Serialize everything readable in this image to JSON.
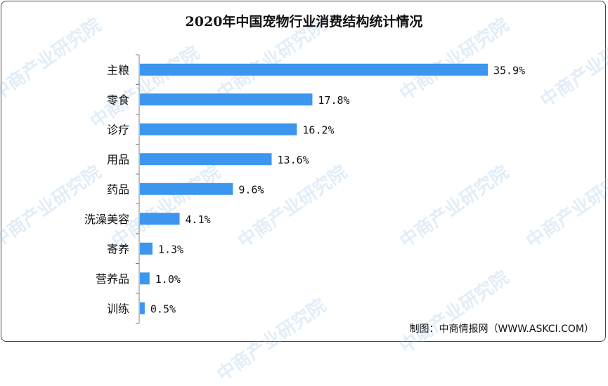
{
  "watermark": {
    "text": "中商产业研究院"
  },
  "source": "制图：中商情报网（WWW.ASKCI.COM）",
  "colors": {
    "bar": "#3c96ee",
    "axis": "#7f7f7f",
    "text": "#111111"
  },
  "chart_data": {
    "type": "bar",
    "orientation": "horizontal",
    "title": "2020年中国宠物行业消费结构统计情况",
    "categories": [
      "主粮",
      "零食",
      "诊疗",
      "用品",
      "药品",
      "洗澡美容",
      "寄养",
      "营养品",
      "训练"
    ],
    "values": [
      35.9,
      17.8,
      16.2,
      13.6,
      9.6,
      4.1,
      1.3,
      1.0,
      0.5
    ],
    "value_labels": [
      "35.9%",
      "17.8%",
      "16.2%",
      "13.6%",
      "9.6%",
      "4.1%",
      "1.3%",
      "1.0%",
      "0.5%"
    ],
    "unit": "%",
    "xlim": [
      0,
      35.9
    ],
    "grid": false,
    "legend": "none"
  }
}
